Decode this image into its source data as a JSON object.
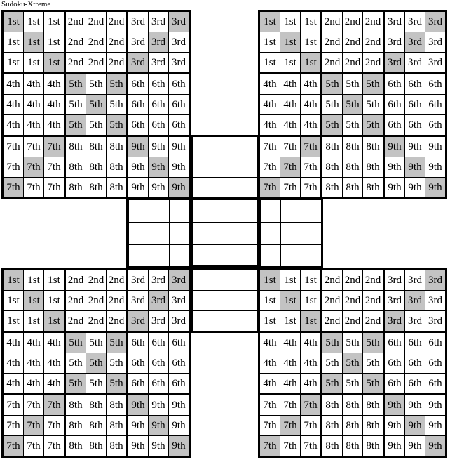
{
  "title": "Sudoku-Xtreme",
  "colors": {
    "line": "#000000",
    "cell_bg": "#ffffff",
    "shaded_bg": "#c3c3c3",
    "page_bg": "#ffffff",
    "text": "#000000"
  },
  "block_labels": [
    "1st",
    "2nd",
    "3rd",
    "4th",
    "5th",
    "6th",
    "7th",
    "8th",
    "9th"
  ],
  "cell_labels": [
    [
      "1st",
      "1st",
      "1st",
      "2nd",
      "2nd",
      "2nd",
      "3rd",
      "3rd",
      "3rd"
    ],
    [
      "1st",
      "1st",
      "1st",
      "2nd",
      "2nd",
      "2nd",
      "3rd",
      "3rd",
      "3rd"
    ],
    [
      "1st",
      "1st",
      "1st",
      "2nd",
      "2nd",
      "2nd",
      "3rd",
      "3rd",
      "3rd"
    ],
    [
      "4th",
      "4th",
      "4th",
      "5th",
      "5th",
      "5th",
      "6th",
      "6th",
      "6th"
    ],
    [
      "4th",
      "4th",
      "4th",
      "5th",
      "5th",
      "5th",
      "6th",
      "6th",
      "6th"
    ],
    [
      "4th",
      "4th",
      "4th",
      "5th",
      "5th",
      "5th",
      "6th",
      "6th",
      "6th"
    ],
    [
      "7th",
      "7th",
      "7th",
      "8th",
      "8th",
      "8th",
      "9th",
      "9th",
      "9th"
    ],
    [
      "7th",
      "7th",
      "7th",
      "8th",
      "8th",
      "8th",
      "9th",
      "9th",
      "9th"
    ],
    [
      "7th",
      "7th",
      "7th",
      "8th",
      "8th",
      "8th",
      "9th",
      "9th",
      "9th"
    ]
  ],
  "shaded_cells": [
    [
      0,
      0
    ],
    [
      0,
      8
    ],
    [
      1,
      1
    ],
    [
      1,
      7
    ],
    [
      2,
      2
    ],
    [
      2,
      6
    ],
    [
      3,
      3
    ],
    [
      3,
      5
    ],
    [
      4,
      4
    ],
    [
      5,
      3
    ],
    [
      5,
      5
    ],
    [
      6,
      2
    ],
    [
      6,
      6
    ],
    [
      7,
      1
    ],
    [
      7,
      7
    ],
    [
      8,
      0
    ],
    [
      8,
      8
    ]
  ],
  "corner_grids": [
    {
      "id": "grid-top-left"
    },
    {
      "id": "grid-top-right"
    },
    {
      "id": "grid-bottom-left"
    },
    {
      "id": "grid-bottom-right"
    }
  ],
  "empty_blocks": [
    {
      "id": "center-top-block"
    },
    {
      "id": "center-middle-band"
    },
    {
      "id": "center-bottom-block"
    }
  ]
}
